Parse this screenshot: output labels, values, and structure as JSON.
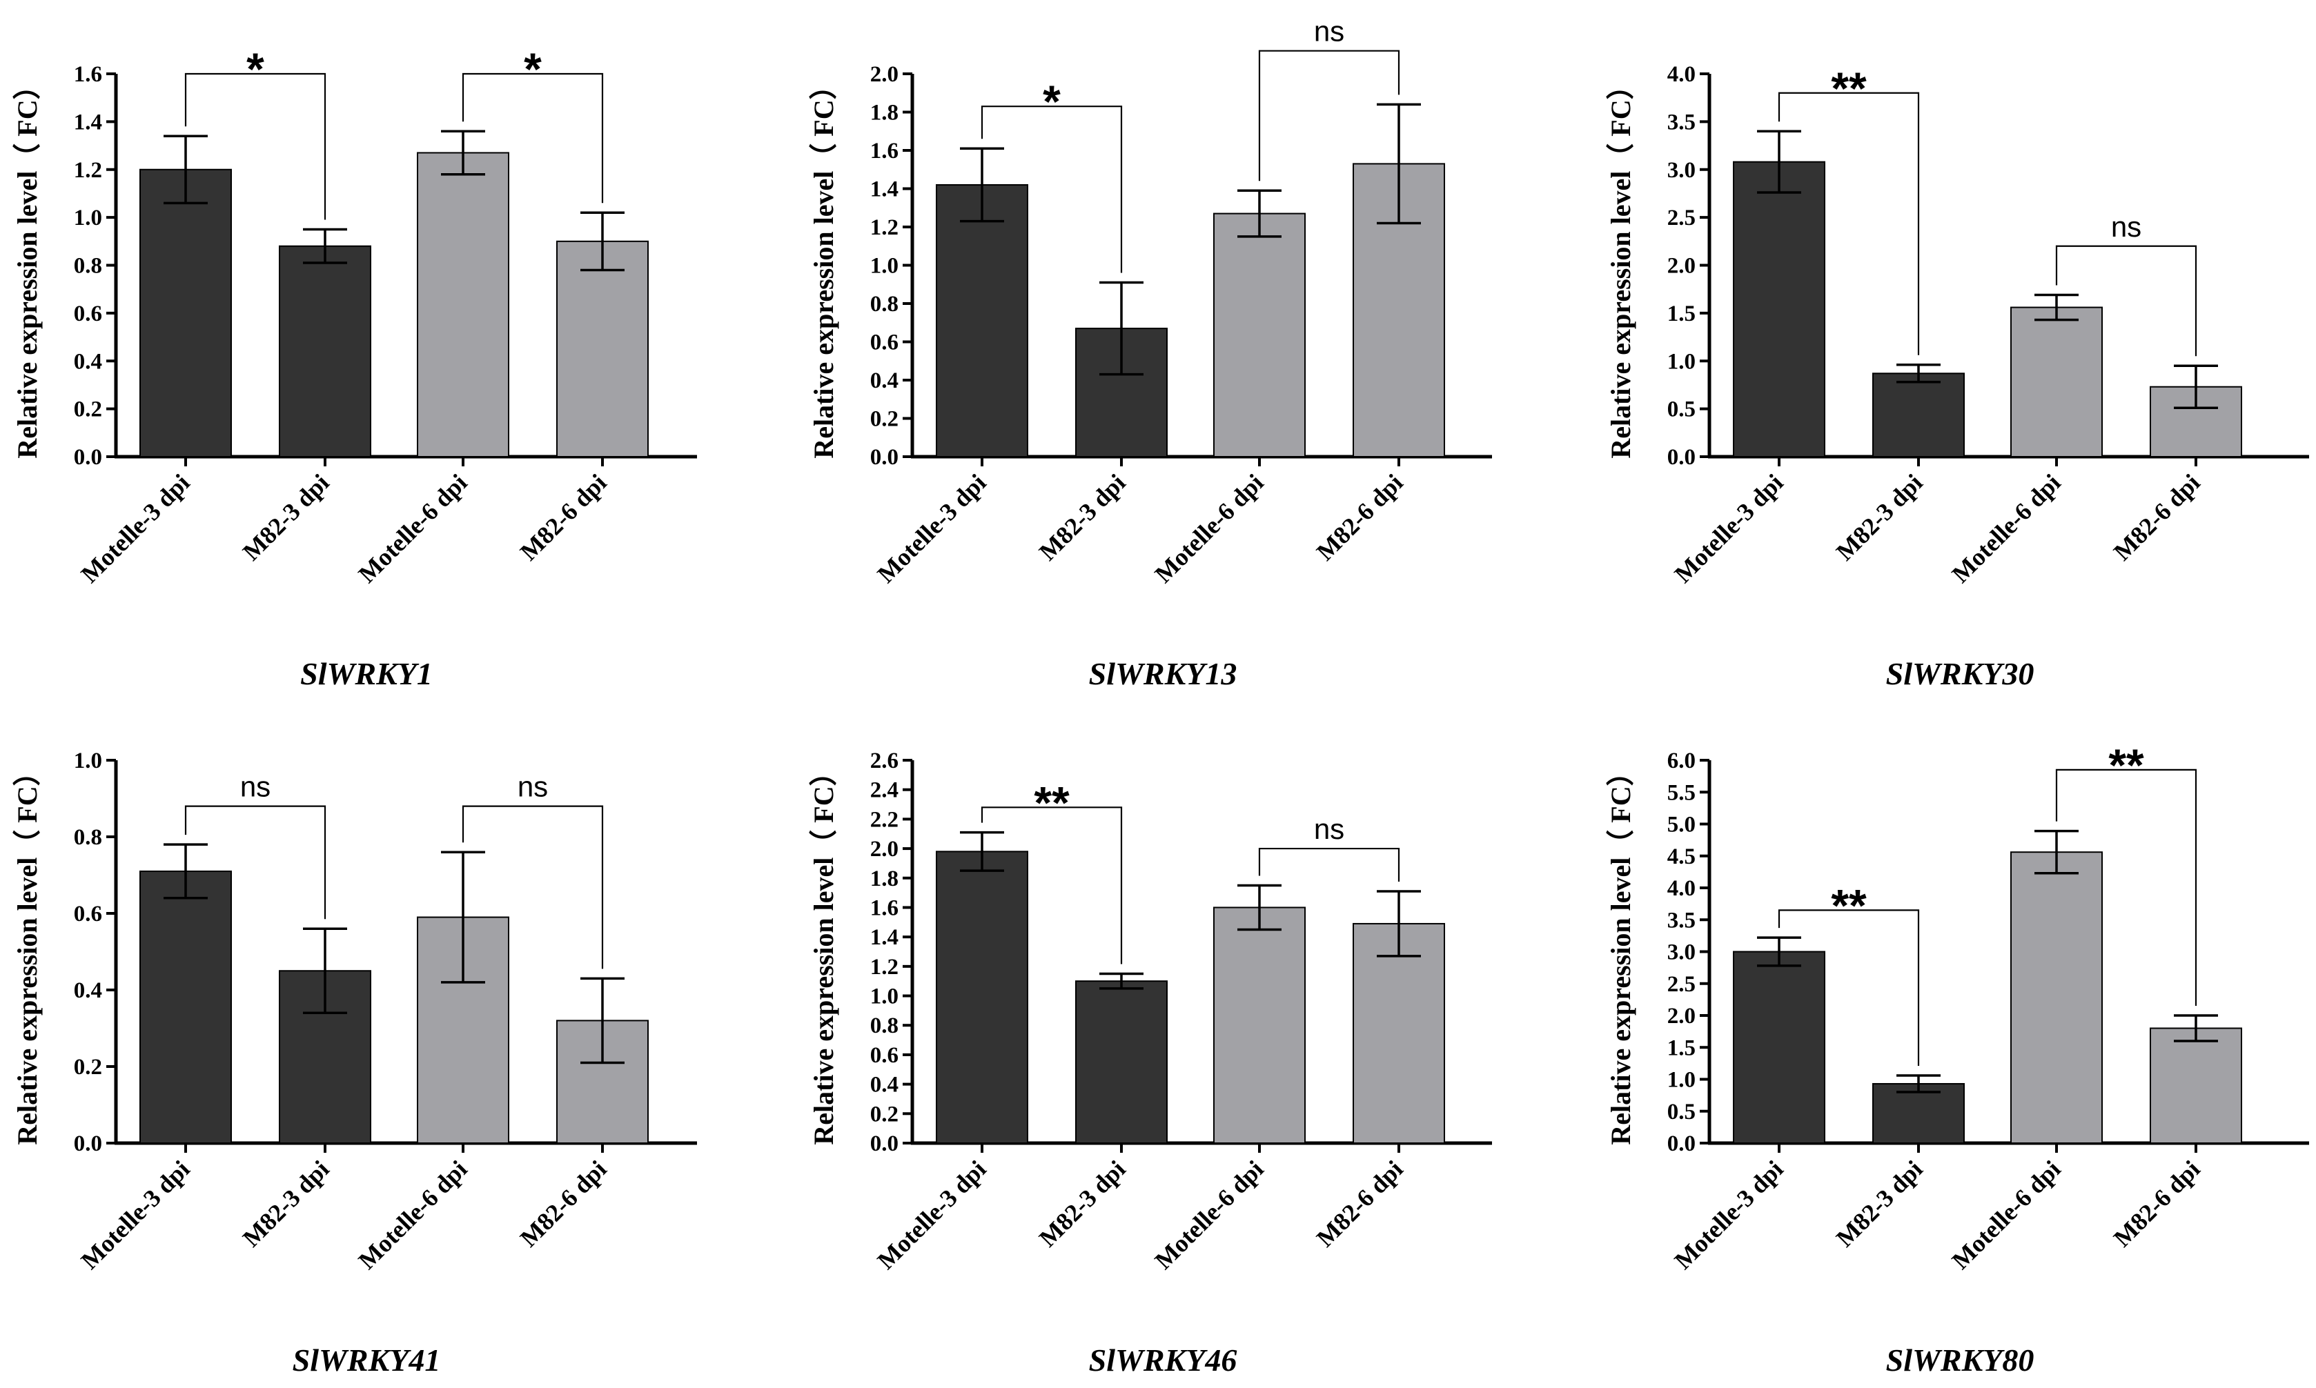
{
  "chart_data": [
    {
      "type": "bar",
      "title": "SlWRKY1",
      "ylabel": "Relative expression level（ FC）",
      "categories": [
        "Motelle-3 dpi",
        "M82-3 dpi",
        "Motelle-6 dpi",
        "M82-6 dpi"
      ],
      "values": [
        1.2,
        0.88,
        1.27,
        0.9
      ],
      "errors": [
        0.14,
        0.07,
        0.09,
        0.12
      ],
      "bar_colors": [
        "#333333",
        "#333333",
        "#a2a2a6",
        "#a2a2a6"
      ],
      "ylim": [
        0,
        1.6
      ],
      "yticks": [
        "0.0",
        "0.2",
        "0.4",
        "0.6",
        "0.8",
        "1.0",
        "1.2",
        "1.4",
        "1.6"
      ],
      "comparisons": [
        {
          "from": 0,
          "to": 1,
          "label": "*",
          "y": 1.6
        },
        {
          "from": 2,
          "to": 3,
          "label": "*",
          "y": 1.6
        }
      ]
    },
    {
      "type": "bar",
      "title": "SlWRKY13",
      "ylabel": "Relative expression level（ FC）",
      "categories": [
        "Motelle-3 dpi",
        "M82-3 dpi",
        "Motelle-6 dpi",
        "M82-6 dpi"
      ],
      "values": [
        1.42,
        0.67,
        1.27,
        1.53
      ],
      "errors": [
        0.19,
        0.24,
        0.12,
        0.31
      ],
      "bar_colors": [
        "#333333",
        "#333333",
        "#a2a2a6",
        "#a2a2a6"
      ],
      "ylim": [
        0,
        2.0
      ],
      "yticks": [
        "0.0",
        "0.2",
        "0.4",
        "0.6",
        "0.8",
        "1.0",
        "1.2",
        "1.4",
        "1.6",
        "1.8",
        "2.0"
      ],
      "comparisons": [
        {
          "from": 0,
          "to": 1,
          "label": "*",
          "y": 1.83
        },
        {
          "from": 2,
          "to": 3,
          "label": "ns",
          "y": 2.12
        }
      ]
    },
    {
      "type": "bar",
      "title": "SlWRKY30",
      "ylabel": "Relative expression level（ FC）",
      "categories": [
        "Motelle-3 dpi",
        "M82-3 dpi",
        "Motelle-6 dpi",
        "M82-6 dpi"
      ],
      "values": [
        3.08,
        0.87,
        1.56,
        0.73
      ],
      "errors": [
        0.32,
        0.09,
        0.13,
        0.22
      ],
      "bar_colors": [
        "#333333",
        "#333333",
        "#a2a2a6",
        "#a2a2a6"
      ],
      "ylim": [
        0,
        4.0
      ],
      "yticks": [
        "0.0",
        "0.5",
        "1.0",
        "1.5",
        "2.0",
        "2.5",
        "3.0",
        "3.5",
        "4.0"
      ],
      "comparisons": [
        {
          "from": 0,
          "to": 1,
          "label": "**",
          "y": 3.8
        },
        {
          "from": 2,
          "to": 3,
          "label": "ns",
          "y": 2.2
        }
      ]
    },
    {
      "type": "bar",
      "title": "SlWRKY41",
      "ylabel": "Relative expression level（ FC）",
      "categories": [
        "Motelle-3 dpi",
        "M82-3 dpi",
        "Motelle-6 dpi",
        "M82-6 dpi"
      ],
      "values": [
        0.71,
        0.45,
        0.59,
        0.32
      ],
      "errors": [
        0.07,
        0.11,
        0.17,
        0.11
      ],
      "bar_colors": [
        "#333333",
        "#333333",
        "#a2a2a6",
        "#a2a2a6"
      ],
      "ylim": [
        0,
        1.0
      ],
      "yticks": [
        "0.0",
        "0.2",
        "0.4",
        "0.6",
        "0.8",
        "1.0"
      ],
      "comparisons": [
        {
          "from": 0,
          "to": 1,
          "label": "ns",
          "y": 0.88
        },
        {
          "from": 2,
          "to": 3,
          "label": "ns",
          "y": 0.88
        }
      ]
    },
    {
      "type": "bar",
      "title": "SlWRKY46",
      "ylabel": "Relative expression level（ FC）",
      "categories": [
        "Motelle-3 dpi",
        "M82-3 dpi",
        "Motelle-6 dpi",
        "M82-6 dpi"
      ],
      "values": [
        1.98,
        1.1,
        1.6,
        1.49
      ],
      "errors": [
        0.13,
        0.05,
        0.15,
        0.22
      ],
      "bar_colors": [
        "#333333",
        "#333333",
        "#a2a2a6",
        "#a2a2a6"
      ],
      "ylim": [
        0,
        2.6
      ],
      "yticks": [
        "0.0",
        "0.2",
        "0.4",
        "0.6",
        "0.8",
        "1.0",
        "1.2",
        "1.4",
        "1.6",
        "1.8",
        "2.0",
        "2.2",
        "2.4",
        "2.6"
      ],
      "comparisons": [
        {
          "from": 0,
          "to": 1,
          "label": "**",
          "y": 2.28
        },
        {
          "from": 2,
          "to": 3,
          "label": "ns",
          "y": 2.0
        }
      ]
    },
    {
      "type": "bar",
      "title": "SlWRKY80",
      "ylabel": "Relative expression level（ FC）",
      "categories": [
        "Motelle-3 dpi",
        "M82-3 dpi",
        "Motelle-6 dpi",
        "M82-6 dpi"
      ],
      "values": [
        3.0,
        0.93,
        4.56,
        1.8
      ],
      "errors": [
        0.22,
        0.13,
        0.33,
        0.2
      ],
      "bar_colors": [
        "#333333",
        "#333333",
        "#a2a2a6",
        "#a2a2a6"
      ],
      "ylim": [
        0,
        6.0
      ],
      "yticks": [
        "0.0",
        "0.5",
        "1.0",
        "1.5",
        "2.0",
        "2.5",
        "3.0",
        "3.5",
        "4.0",
        "4.5",
        "5.0",
        "5.5",
        "6.0"
      ],
      "comparisons": [
        {
          "from": 0,
          "to": 1,
          "label": "**",
          "y": 3.65
        },
        {
          "from": 2,
          "to": 3,
          "label": "**",
          "y": 5.85
        }
      ]
    }
  ]
}
